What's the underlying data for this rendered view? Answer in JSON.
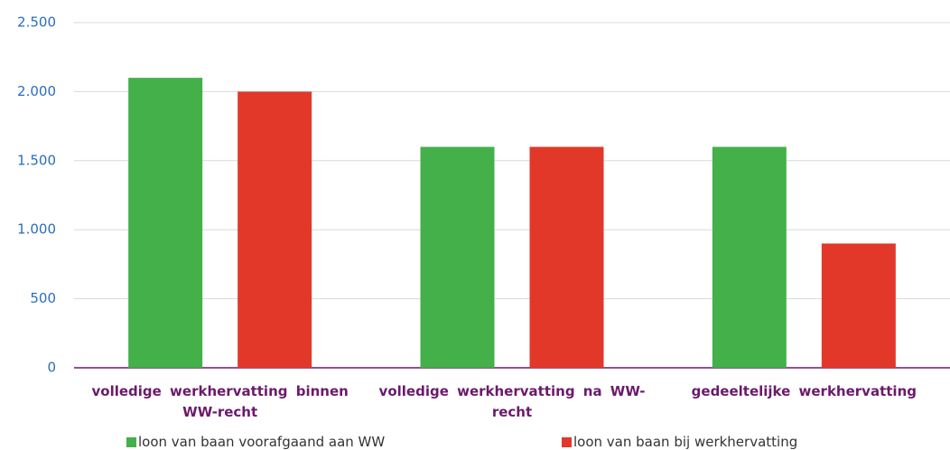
{
  "chart_data": {
    "type": "bar",
    "categories": [
      "volledige werkhervatting binnen WW-recht",
      "volledige werkhervatting na WW-recht",
      "gedeeltelijke werkhervatting"
    ],
    "series": [
      {
        "name": "loon van baan voorafgaand aan WW",
        "color": "#43b04a",
        "values": [
          2100,
          1600,
          1600
        ]
      },
      {
        "name": "loon van baan bij werkhervatting",
        "color": "#e2382a",
        "values": [
          2000,
          1600,
          900
        ]
      }
    ],
    "ylim": [
      0,
      2500
    ],
    "yticks": [
      0,
      500,
      {
        "value": 1000,
        "label": "1.000"
      },
      {
        "value": 1500,
        "label": "1.500"
      },
      {
        "value": 2000,
        "label": "2.000"
      },
      {
        "value": 2500,
        "label": "2.500"
      }
    ],
    "grid": true
  }
}
